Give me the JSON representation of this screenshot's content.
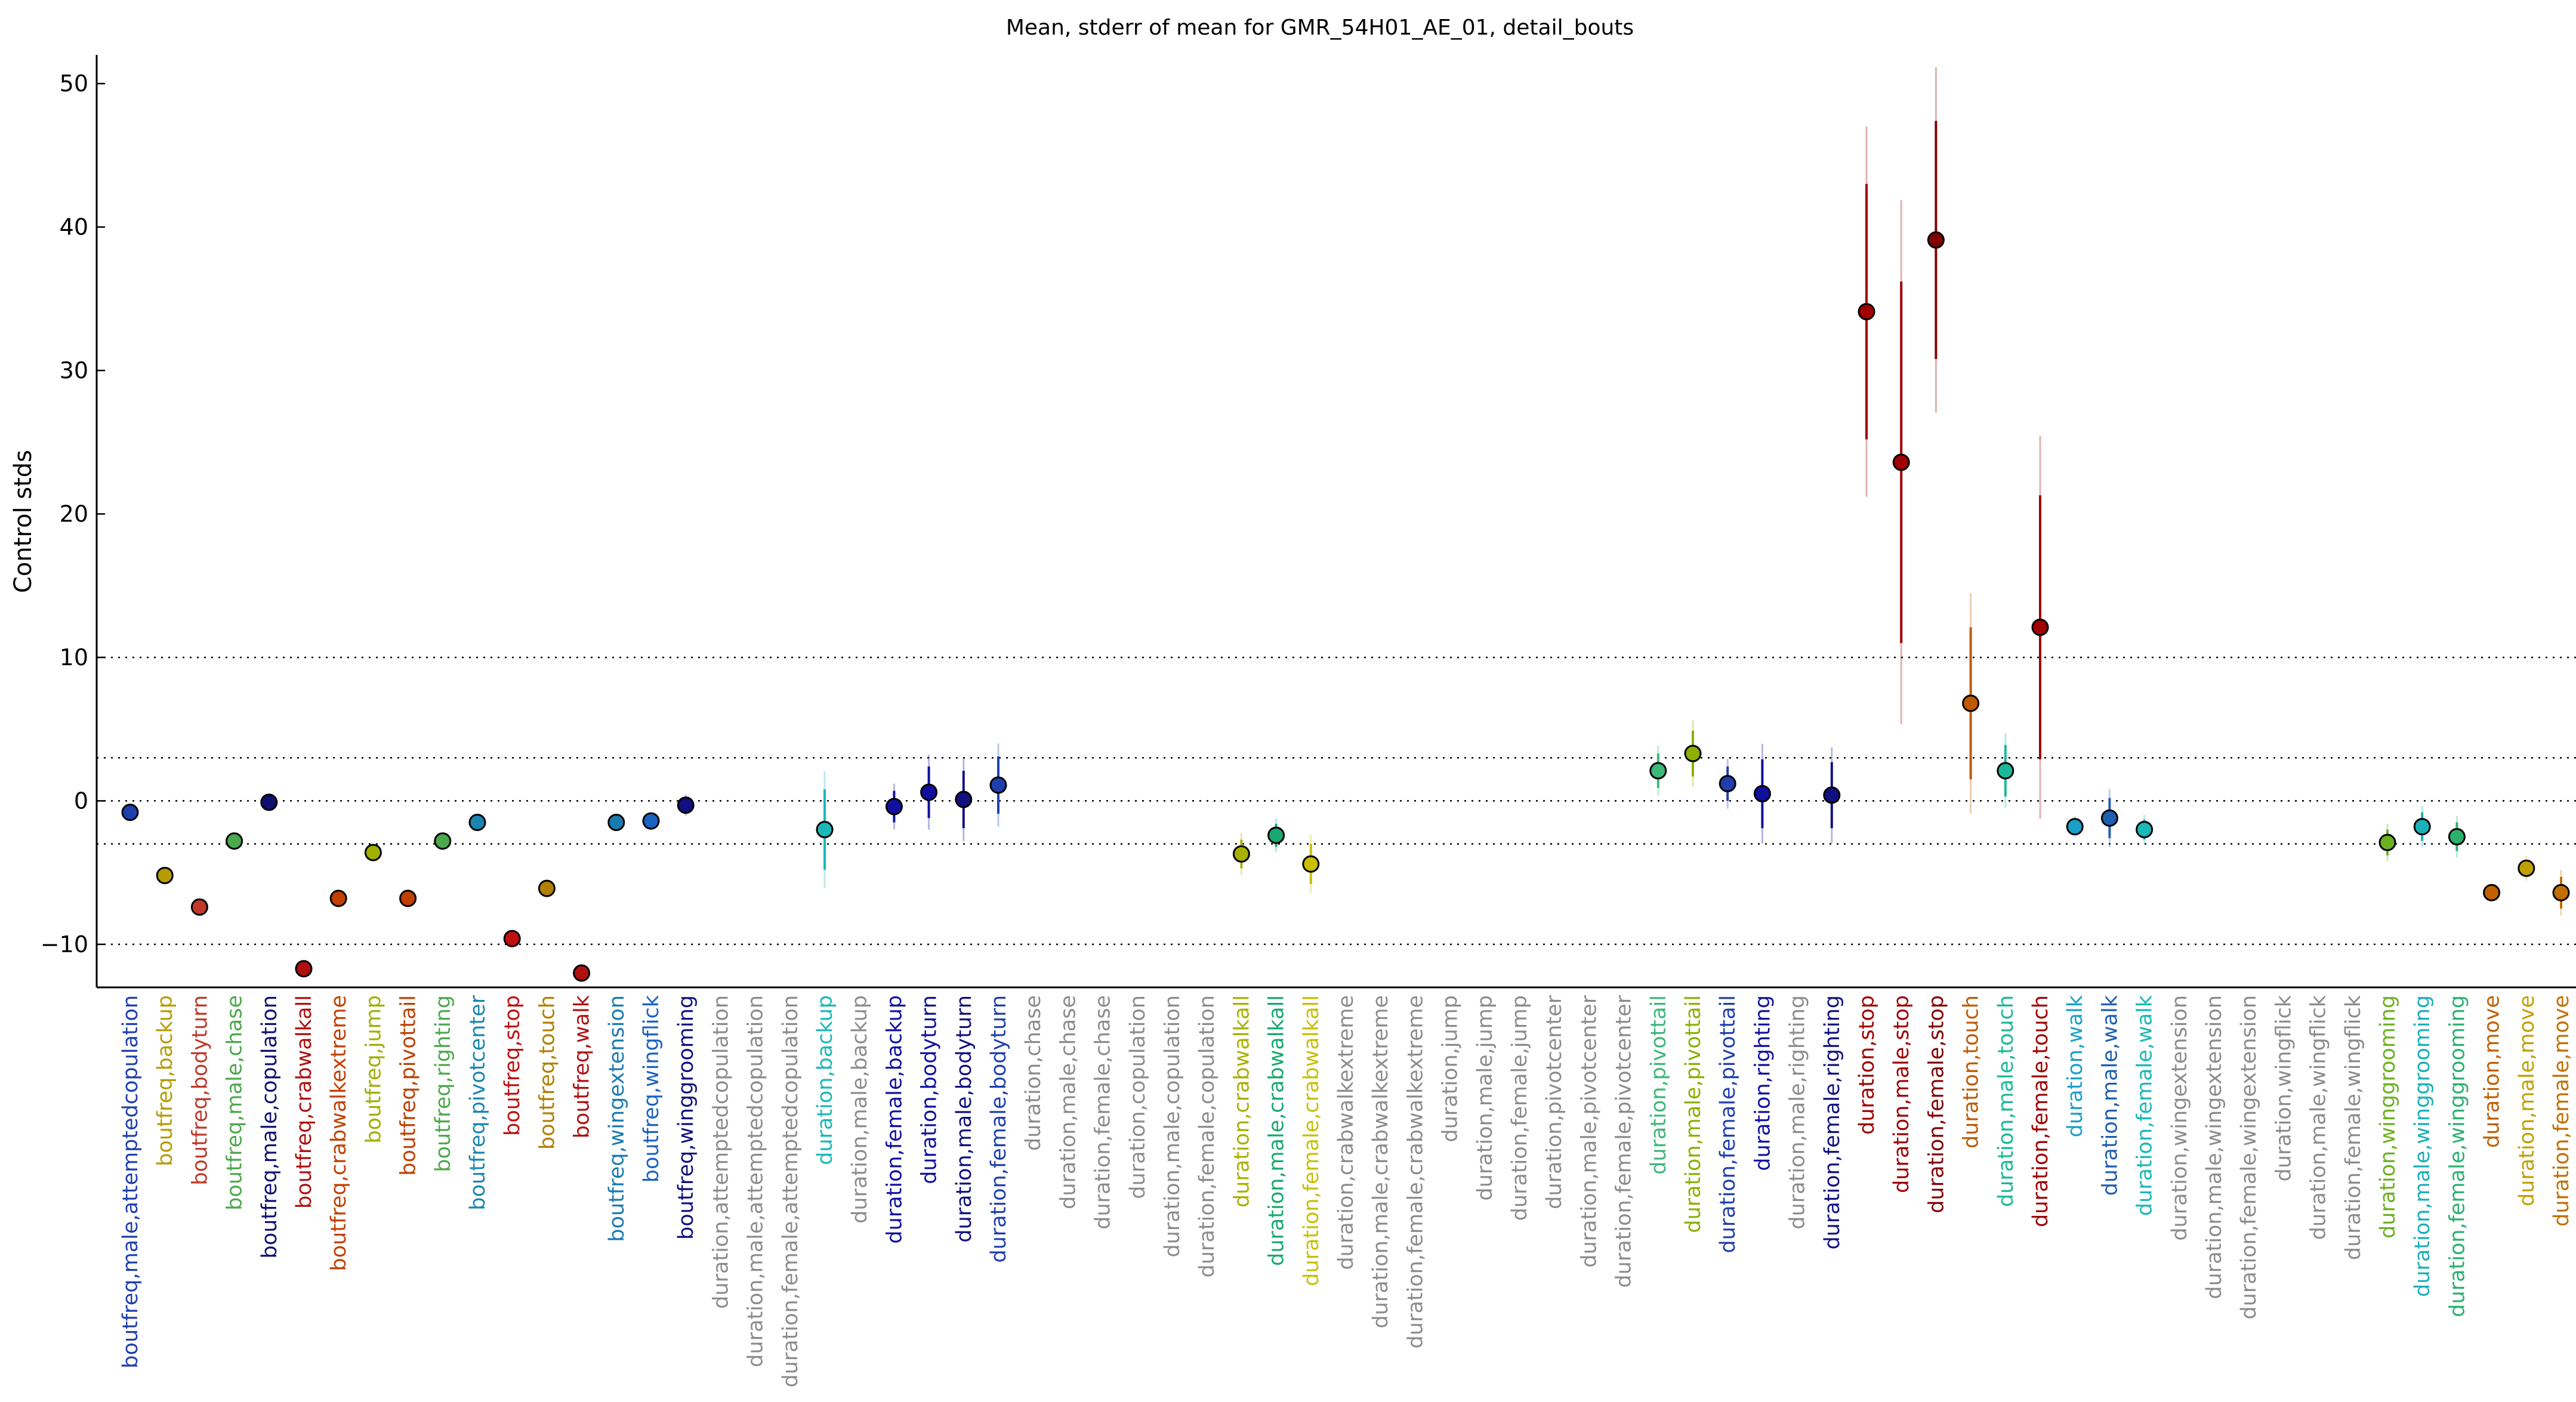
{
  "chart_data": {
    "type": "scatter",
    "title": "Mean, stderr of mean for GMR_54H01_AE_01, detail_bouts",
    "xlabel": "",
    "ylabel": "Control stds",
    "ylim": [
      -13,
      52
    ],
    "yticks": [
      -10,
      0,
      10,
      20,
      30,
      40,
      50
    ],
    "reference_lines": [
      10,
      3,
      0,
      -3,
      -10
    ],
    "grid": false,
    "legend": "none",
    "categories": [
      "boutfreq,male,attemptedcopulation",
      "boutfreq,backup",
      "boutfreq,bodyturn",
      "boutfreq,male,chase",
      "boutfreq,male,copulation",
      "boutfreq,crabwalkall",
      "boutfreq,crabwalkextreme",
      "boutfreq,jump",
      "boutfreq,pivottail",
      "boutfreq,righting",
      "boutfreq,pivotcenter",
      "boutfreq,stop",
      "boutfreq,touch",
      "boutfreq,walk",
      "boutfreq,wingextension",
      "boutfreq,wingflick",
      "boutfreq,winggrooming",
      "duration,attemptedcopulation",
      "duration,male,attemptedcopulation",
      "duration,female,attemptedcopulation",
      "duration,backup",
      "duration,male,backup",
      "duration,female,backup",
      "duration,bodyturn",
      "duration,male,bodyturn",
      "duration,female,bodyturn",
      "duration,chase",
      "duration,male,chase",
      "duration,female,chase",
      "duration,copulation",
      "duration,male,copulation",
      "duration,female,copulation",
      "duration,crabwalkall",
      "duration,male,crabwalkall",
      "duration,female,crabwalkall",
      "duration,crabwalkextreme",
      "duration,male,crabwalkextreme",
      "duration,female,crabwalkextreme",
      "duration,jump",
      "duration,male,jump",
      "duration,female,jump",
      "duration,pivotcenter",
      "duration,male,pivotcenter",
      "duration,female,pivotcenter",
      "duration,pivottail",
      "duration,male,pivottail",
      "duration,female,pivottail",
      "duration,righting",
      "duration,male,righting",
      "duration,female,righting",
      "duration,stop",
      "duration,male,stop",
      "duration,female,stop",
      "duration,touch",
      "duration,male,touch",
      "duration,female,touch",
      "duration,walk",
      "duration,male,walk",
      "duration,female,walk",
      "duration,wingextension",
      "duration,male,wingextension",
      "duration,female,wingextension",
      "duration,wingflick",
      "duration,male,wingflick",
      "duration,female,wingflick",
      "duration,winggrooming",
      "duration,male,winggrooming",
      "duration,female,winggrooming",
      "duration,move",
      "duration,male,move",
      "duration,female,move"
    ],
    "label_colors": [
      "#1f3fae",
      "#b59c00",
      "#c0392b",
      "#4ca84c",
      "#101070",
      "#b01010",
      "#c04000",
      "#9fb000",
      "#c04000",
      "#4ca84c",
      "#1a86b0",
      "#c01010",
      "#b08000",
      "#b01010",
      "#1a7ab0",
      "#1a62c0",
      "#101080",
      "#8c8c8c",
      "#8c8c8c",
      "#8c8c8c",
      "#1ab8b8",
      "#8c8c8c",
      "#1010a0",
      "#1010a0",
      "#101080",
      "#1f3fae",
      "#8c8c8c",
      "#8c8c8c",
      "#8c8c8c",
      "#8c8c8c",
      "#8c8c8c",
      "#8c8c8c",
      "#a8b000",
      "#1aa870",
      "#c8c000",
      "#8c8c8c",
      "#8c8c8c",
      "#8c8c8c",
      "#8c8c8c",
      "#8c8c8c",
      "#8c8c8c",
      "#8c8c8c",
      "#8c8c8c",
      "#8c8c8c",
      "#3cb878",
      "#8cb000",
      "#1f3fae",
      "#1010a0",
      "#8c8c8c",
      "#101080",
      "#a00000",
      "#a00000",
      "#800000",
      "#c05a00",
      "#1ab898",
      "#a00000",
      "#1aa0c8",
      "#1f5fb0",
      "#1ab8b8",
      "#8c8c8c",
      "#8c8c8c",
      "#8c8c8c",
      "#8c8c8c",
      "#8c8c8c",
      "#8c8c8c",
      "#6cb020",
      "#1ab0b8",
      "#2cb070",
      "#c06000",
      "#c0a000",
      "#c07000"
    ],
    "series": [
      {
        "mean": [
          -0.8,
          -5.2,
          -7.4,
          -2.8,
          -0.1,
          -11.7,
          -6.8,
          -3.6,
          -6.8,
          -2.8,
          -1.5,
          -9.6,
          -6.1,
          -12.0,
          -1.5,
          -1.4,
          -0.3,
          null,
          null,
          null,
          -2.0,
          null,
          -0.4,
          0.6,
          0.1,
          1.1,
          null,
          null,
          null,
          null,
          null,
          null,
          -3.7,
          -2.4,
          -4.4,
          null,
          null,
          null,
          null,
          null,
          null,
          null,
          null,
          null,
          2.1,
          3.3,
          1.2,
          0.5,
          null,
          0.4,
          34.1,
          23.6,
          39.1,
          6.8,
          2.1,
          12.1,
          -1.8,
          -1.2,
          -2.0,
          null,
          null,
          null,
          null,
          null,
          null,
          -2.9,
          -1.8,
          -2.5,
          -6.4,
          -4.7,
          -6.4
        ],
        "stderr": [
          0.3,
          0.3,
          0.3,
          0.4,
          0.3,
          0.3,
          0.3,
          0.3,
          0.3,
          0.3,
          0.3,
          0.3,
          0.3,
          0.3,
          0.3,
          0.3,
          0.5,
          null,
          null,
          null,
          2.8,
          null,
          1.1,
          1.8,
          2.0,
          2.0,
          null,
          null,
          null,
          null,
          null,
          null,
          1.0,
          0.8,
          1.4,
          null,
          null,
          null,
          null,
          null,
          null,
          null,
          null,
          null,
          1.2,
          1.6,
          1.2,
          2.4,
          null,
          2.3,
          8.9,
          12.6,
          8.3,
          5.3,
          1.8,
          9.2,
          0.5,
          1.4,
          0.7,
          null,
          null,
          null,
          null,
          null,
          null,
          0.9,
          1.0,
          1.0,
          0.4,
          0.6,
          1.1
        ]
      }
    ]
  }
}
